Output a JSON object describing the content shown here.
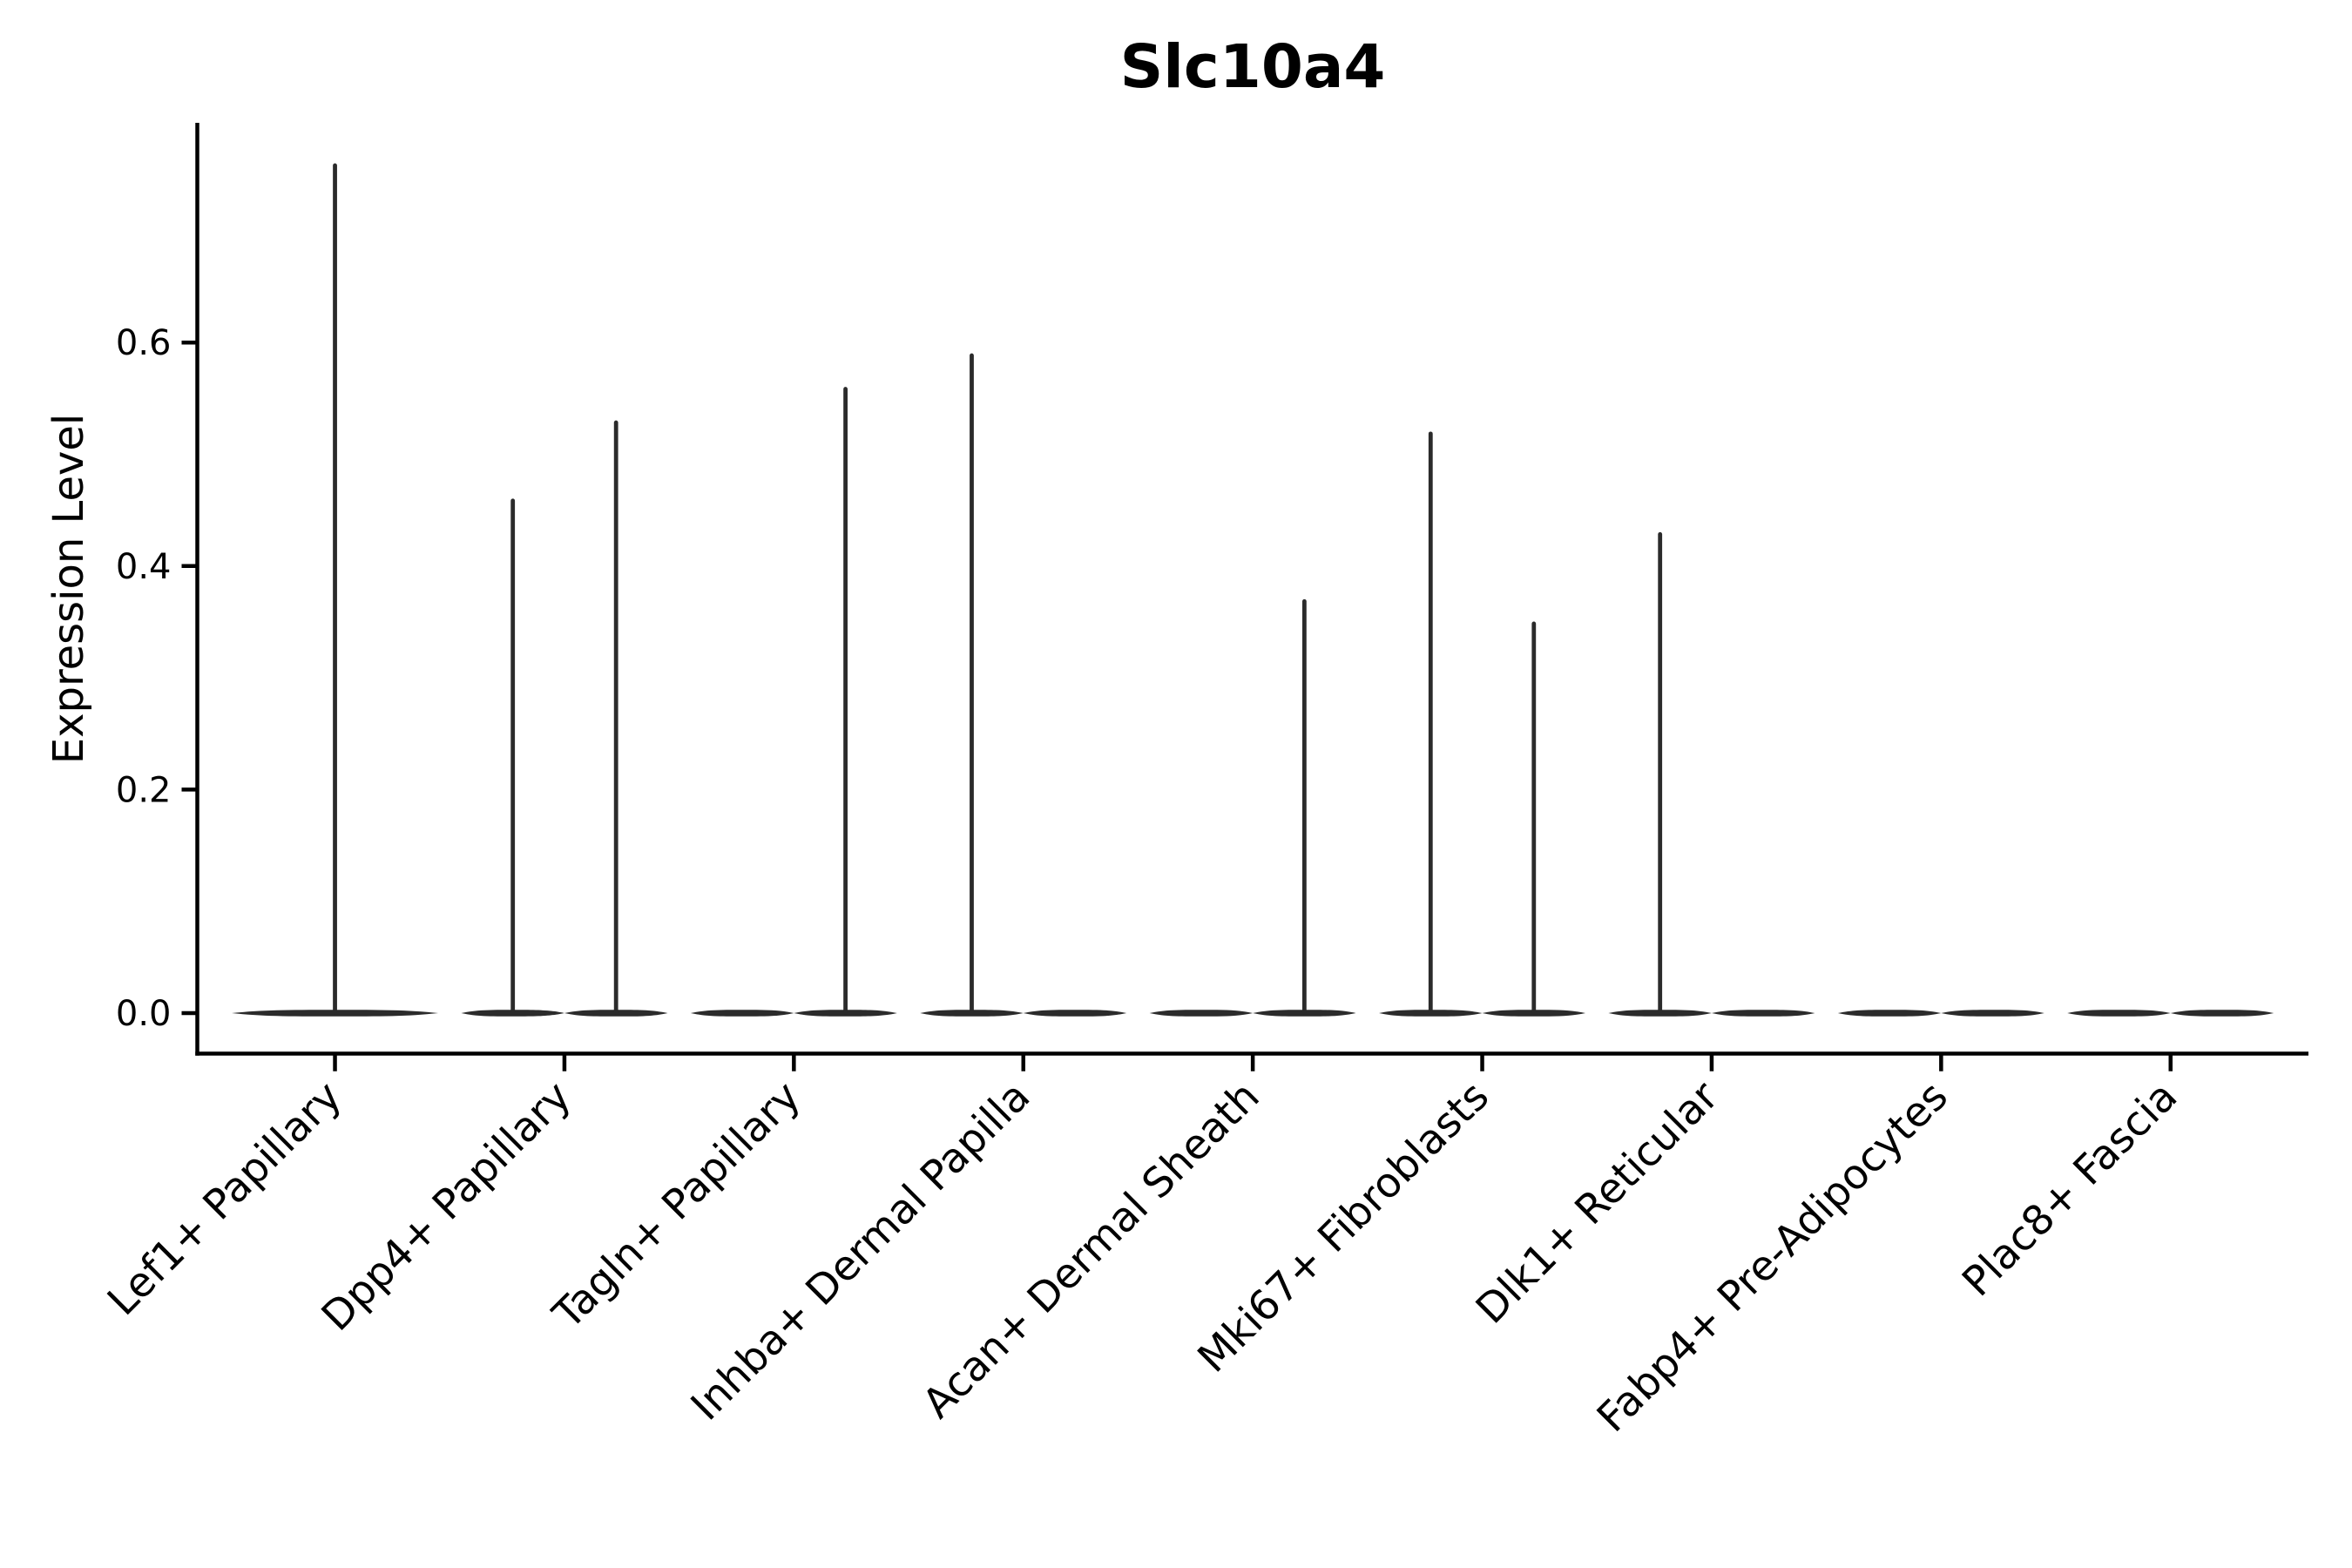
{
  "chart_data": {
    "type": "violin",
    "title": "Slc10a4",
    "ylabel": "Expression Level",
    "xlabel": "",
    "grid": false,
    "legend": "none",
    "background": "#ffffff",
    "ylim": [
      -0.04,
      0.8
    ],
    "yticks": [
      0.0,
      0.2,
      0.4,
      0.6
    ],
    "ytick_labels": [
      "0.0",
      "0.2",
      "0.4",
      "0.6"
    ],
    "categories": [
      "Lef1+ Papillary",
      "Dpp4+ Papillary",
      "Tagln+ Papillary",
      "Inhba+ Dermal Papilla",
      "Acan+ Dermal Sheath",
      "Mki67+ Fibroblasts",
      "Dlk1+ Reticular",
      "Fabp4+ Pre-Adipocytes",
      "Plac8+ Fascia"
    ],
    "violins": [
      {
        "category_index": 0,
        "slot": "full",
        "max_expression": 0.76
      },
      {
        "category_index": 1,
        "slot": "left",
        "max_expression": 0.46
      },
      {
        "category_index": 1,
        "slot": "right",
        "max_expression": 0.53
      },
      {
        "category_index": 2,
        "slot": "left",
        "max_expression": 0
      },
      {
        "category_index": 2,
        "slot": "right",
        "max_expression": 0.56
      },
      {
        "category_index": 3,
        "slot": "left",
        "max_expression": 0.59
      },
      {
        "category_index": 3,
        "slot": "right",
        "max_expression": 0
      },
      {
        "category_index": 4,
        "slot": "left",
        "max_expression": 0
      },
      {
        "category_index": 4,
        "slot": "right",
        "max_expression": 0.37
      },
      {
        "category_index": 5,
        "slot": "left",
        "max_expression": 0.52
      },
      {
        "category_index": 5,
        "slot": "right",
        "max_expression": 0.35
      },
      {
        "category_index": 6,
        "slot": "left",
        "max_expression": 0.43
      },
      {
        "category_index": 6,
        "slot": "right",
        "max_expression": 0
      },
      {
        "category_index": 7,
        "slot": "left",
        "max_expression": 0
      },
      {
        "category_index": 7,
        "slot": "right",
        "max_expression": 0
      },
      {
        "category_index": 8,
        "slot": "left",
        "max_expression": 0
      },
      {
        "category_index": 8,
        "slot": "right",
        "max_expression": 0
      }
    ],
    "colors": {
      "violin": "#2b2b2b",
      "axis": "#000000",
      "text": "#000000",
      "background": "#ffffff"
    }
  }
}
